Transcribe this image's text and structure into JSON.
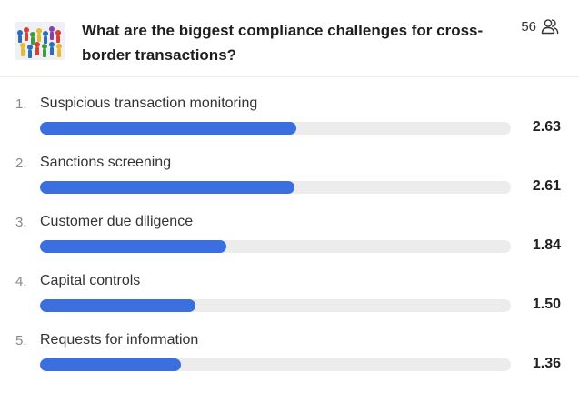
{
  "question": {
    "title": "What are the biggest compliance challenges for cross-border transactions?",
    "participants_count": "56",
    "participants_icon": "users-icon",
    "thumbnail_icon": "crowd-figurines-thumbnail"
  },
  "accent_color": "#3b6fe0",
  "track_color": "#ececec",
  "ranking": {
    "items": [
      {
        "rank": "1.",
        "label": "Suspicious transaction monitoring",
        "score": "2.63",
        "fill_pct": 54.5
      },
      {
        "rank": "2.",
        "label": "Sanctions screening",
        "score": "2.61",
        "fill_pct": 54
      },
      {
        "rank": "3.",
        "label": "Customer due diligence",
        "score": "1.84",
        "fill_pct": 39.5
      },
      {
        "rank": "4.",
        "label": "Capital controls",
        "score": "1.50",
        "fill_pct": 33
      },
      {
        "rank": "5.",
        "label": "Requests for information",
        "score": "1.36",
        "fill_pct": 30
      }
    ]
  }
}
